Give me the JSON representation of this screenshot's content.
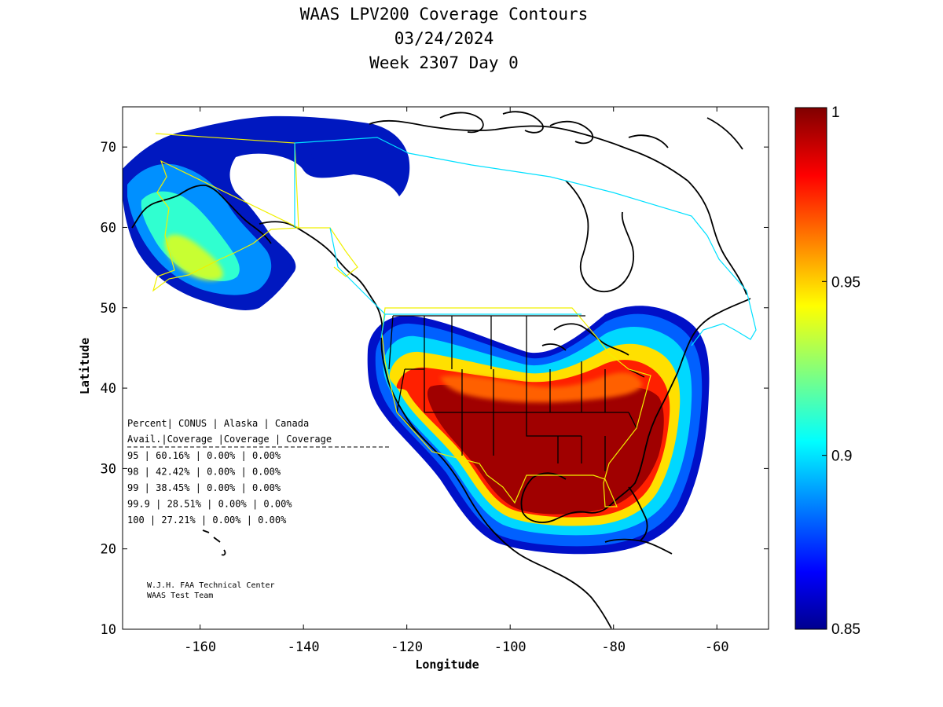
{
  "title": {
    "line1": "WAAS LPV200 Coverage Contours",
    "line2": "03/24/2024",
    "line3": "Week 2307 Day 0"
  },
  "chart_data": {
    "type": "heatmap",
    "xlabel": "Longitude",
    "ylabel": "Latitude",
    "xlim": [
      -175,
      -50
    ],
    "ylim": [
      10,
      75
    ],
    "xticks": [
      -160,
      -140,
      -120,
      -100,
      -80,
      -60
    ],
    "yticks": [
      10,
      20,
      30,
      40,
      50,
      60,
      70
    ],
    "colorbar": {
      "min": 0.85,
      "max": 1,
      "ticks": [
        "1",
        "0.95",
        "0.9",
        "0.85"
      ],
      "colormap": "jet"
    },
    "coverage_table": {
      "header1": [
        "Percent",
        "CONUS",
        "Alaska",
        "Canada"
      ],
      "header2": [
        "Avail.",
        "Coverage",
        "Coverage",
        "Coverage"
      ],
      "rows": [
        [
          "95",
          "60.16%",
          "0.00%",
          "0.00%"
        ],
        [
          "98",
          "42.42%",
          "0.00%",
          "0.00%"
        ],
        [
          "99",
          "38.45%",
          "0.00%",
          "0.00%"
        ],
        [
          "99.9",
          "28.51%",
          "0.00%",
          "0.00%"
        ],
        [
          "100",
          "27.21%",
          "0.00%",
          "0.00%"
        ]
      ]
    },
    "credit": [
      "W.J.H. FAA Technical Center",
      "WAAS Test Team"
    ]
  }
}
